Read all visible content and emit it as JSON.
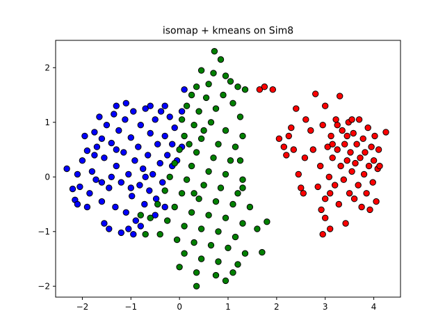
{
  "chart_data": {
    "type": "scatter",
    "title": "isomap + kmeans on Sim8",
    "xlabel": "",
    "ylabel": "",
    "xlim": [
      -2.55,
      4.55
    ],
    "ylim": [
      -2.2,
      2.5
    ],
    "x_ticks": [
      -2,
      -1,
      0,
      1,
      2,
      3,
      4
    ],
    "x_tick_labels": [
      "−2",
      "−1",
      "0",
      "1",
      "2",
      "3",
      "4"
    ],
    "y_ticks": [
      -2,
      -1,
      0,
      1,
      2
    ],
    "y_tick_labels": [
      "−2",
      "−1",
      "0",
      "1",
      "2"
    ],
    "grid": false,
    "legend": "none",
    "marker_edge_color": "#000000",
    "series": [
      {
        "color": "#0000ff",
        "points": [
          [
            -2.32,
            0.15
          ],
          [
            -2.2,
            -0.22
          ],
          [
            -2.15,
            -0.42
          ],
          [
            -2.05,
            -0.18
          ],
          [
            -2.1,
            0.05
          ],
          [
            -1.95,
            0.75
          ],
          [
            -1.9,
            0.48
          ],
          [
            -1.85,
            -0.3
          ],
          [
            -1.8,
            0.1
          ],
          [
            -1.75,
            0.82
          ],
          [
            -1.72,
            -0.05
          ],
          [
            -1.7,
            0.55
          ],
          [
            -1.65,
            1.1
          ],
          [
            -1.6,
            -0.45
          ],
          [
            -1.55,
            0.35
          ],
          [
            -1.5,
            0.95
          ],
          [
            -1.45,
            -0.2
          ],
          [
            -1.4,
            0.62
          ],
          [
            -1.35,
            1.15
          ],
          [
            -1.32,
            -0.55
          ],
          [
            -1.3,
            0.2
          ],
          [
            -1.25,
            0.85
          ],
          [
            -1.2,
            -0.1
          ],
          [
            -1.15,
            0.45
          ],
          [
            -1.12,
            1.05
          ],
          [
            -1.1,
            -0.65
          ],
          [
            -1.05,
            0.05
          ],
          [
            -1.0,
            0.72
          ],
          [
            -0.98,
            -0.35
          ],
          [
            -0.95,
            1.2
          ],
          [
            -0.92,
            0.3
          ],
          [
            -0.9,
            -0.8
          ],
          [
            -0.85,
            0.55
          ],
          [
            -0.82,
            -0.15
          ],
          [
            -0.8,
            0.95
          ],
          [
            -0.75,
            0.15
          ],
          [
            -0.72,
            -0.5
          ],
          [
            -0.7,
            1.25
          ],
          [
            -0.65,
            0.4
          ],
          [
            -0.62,
            -0.25
          ],
          [
            -0.6,
            0.8
          ],
          [
            -0.55,
            0.05
          ],
          [
            -0.5,
            1.05
          ],
          [
            -0.48,
            -0.4
          ],
          [
            -0.45,
            0.6
          ],
          [
            -0.4,
            0.25
          ],
          [
            -0.38,
            1.2
          ],
          [
            -0.35,
            -0.1
          ],
          [
            -0.3,
            0.75
          ],
          [
            -0.25,
            0.4
          ],
          [
            -0.2,
            1.1
          ],
          [
            -0.15,
            0.6
          ],
          [
            -0.1,
            0.9
          ],
          [
            -0.05,
            0.3
          ],
          [
            0.05,
            1.2
          ],
          [
            0.1,
            1.6
          ],
          [
            -1.55,
            -0.85
          ],
          [
            -1.45,
            -0.95
          ],
          [
            -1.2,
            -1.02
          ],
          [
            -1.05,
            -0.95
          ],
          [
            -0.95,
            -1.05
          ],
          [
            -0.8,
            -0.9
          ],
          [
            -1.6,
            0.7
          ],
          [
            -1.75,
            0.4
          ],
          [
            -2.0,
            0.3
          ],
          [
            -2.1,
            -0.5
          ],
          [
            -1.9,
            -0.55
          ],
          [
            -1.3,
            1.3
          ],
          [
            -1.1,
            1.35
          ],
          [
            -0.6,
            1.3
          ],
          [
            -0.3,
            1.3
          ],
          [
            0.05,
            0.55
          ],
          [
            -0.15,
            0.2
          ],
          [
            -0.5,
            -0.7
          ],
          [
            -0.3,
            -0.55
          ],
          [
            -1.4,
            0.0
          ],
          [
            -1.6,
            -0.1
          ],
          [
            -1.0,
            -0.2
          ],
          [
            -0.7,
            0.0
          ],
          [
            -1.3,
            0.5
          ]
        ]
      },
      {
        "color": "#008000",
        "points": [
          [
            0.72,
            2.3
          ],
          [
            0.85,
            2.15
          ],
          [
            0.45,
            1.95
          ],
          [
            0.7,
            1.9
          ],
          [
            0.95,
            1.85
          ],
          [
            1.05,
            1.75
          ],
          [
            0.35,
            1.65
          ],
          [
            0.6,
            1.7
          ],
          [
            1.2,
            1.65
          ],
          [
            1.35,
            1.6
          ],
          [
            0.25,
            1.5
          ],
          [
            0.55,
            1.45
          ],
          [
            0.9,
            1.5
          ],
          [
            1.1,
            1.35
          ],
          [
            0.15,
            1.3
          ],
          [
            0.4,
            1.2
          ],
          [
            0.75,
            1.25
          ],
          [
            1.25,
            1.1
          ],
          [
            0.05,
            1.05
          ],
          [
            0.3,
            0.95
          ],
          [
            0.65,
            1.0
          ],
          [
            0.95,
            0.85
          ],
          [
            1.3,
            0.75
          ],
          [
            0.1,
            0.75
          ],
          [
            0.45,
            0.7
          ],
          [
            0.8,
            0.6
          ],
          [
            1.15,
            0.55
          ],
          [
            0.0,
            0.5
          ],
          [
            0.35,
            0.45
          ],
          [
            0.7,
            0.35
          ],
          [
            1.05,
            0.3
          ],
          [
            -0.1,
            0.25
          ],
          [
            0.25,
            0.2
          ],
          [
            0.6,
            0.1
          ],
          [
            0.95,
            0.05
          ],
          [
            1.3,
            -0.05
          ],
          [
            -0.2,
            0.0
          ],
          [
            0.15,
            -0.05
          ],
          [
            0.5,
            -0.15
          ],
          [
            0.85,
            -0.2
          ],
          [
            1.2,
            -0.3
          ],
          [
            -0.3,
            -0.25
          ],
          [
            0.05,
            -0.3
          ],
          [
            0.4,
            -0.4
          ],
          [
            0.75,
            -0.45
          ],
          [
            1.1,
            -0.5
          ],
          [
            -0.45,
            -0.5
          ],
          [
            -0.1,
            -0.55
          ],
          [
            0.25,
            -0.65
          ],
          [
            0.6,
            -0.7
          ],
          [
            0.95,
            -0.75
          ],
          [
            1.3,
            -0.85
          ],
          [
            -0.6,
            -0.75
          ],
          [
            -0.25,
            -0.8
          ],
          [
            0.1,
            -0.9
          ],
          [
            0.45,
            -0.95
          ],
          [
            0.8,
            -1.0
          ],
          [
            1.15,
            -1.1
          ],
          [
            -0.4,
            -1.05
          ],
          [
            -0.05,
            -1.15
          ],
          [
            0.3,
            -1.2
          ],
          [
            0.65,
            -1.25
          ],
          [
            1.0,
            -1.3
          ],
          [
            1.35,
            -1.4
          ],
          [
            0.1,
            -1.4
          ],
          [
            0.45,
            -1.5
          ],
          [
            0.8,
            -1.55
          ],
          [
            1.2,
            -1.6
          ],
          [
            0.0,
            -1.65
          ],
          [
            0.35,
            -1.75
          ],
          [
            0.75,
            -1.8
          ],
          [
            1.1,
            -1.75
          ],
          [
            0.35,
            -2.0
          ],
          [
            0.95,
            -1.9
          ],
          [
            1.7,
            -1.38
          ],
          [
            1.8,
            -0.82
          ],
          [
            1.6,
            -0.95
          ],
          [
            1.45,
            -0.55
          ],
          [
            1.3,
            -0.2
          ],
          [
            1.25,
            0.3
          ],
          [
            -0.7,
            -1.05
          ],
          [
            -0.8,
            -0.7
          ],
          [
            0.2,
            0.6
          ],
          [
            0.5,
            0.85
          ],
          [
            0.3,
            -0.3
          ]
        ]
      },
      {
        "color": "#ff0000",
        "points": [
          [
            1.65,
            1.6
          ],
          [
            1.75,
            1.65
          ],
          [
            1.92,
            1.6
          ],
          [
            2.05,
            0.7
          ],
          [
            2.15,
            0.55
          ],
          [
            2.25,
            0.75
          ],
          [
            2.3,
            0.9
          ],
          [
            2.2,
            0.4
          ],
          [
            2.35,
            0.5
          ],
          [
            2.4,
            1.25
          ],
          [
            2.45,
            0.05
          ],
          [
            2.5,
            -0.2
          ],
          [
            2.55,
            -0.3
          ],
          [
            2.58,
            0.35
          ],
          [
            2.6,
            1.05
          ],
          [
            2.7,
            0.85
          ],
          [
            2.75,
            0.5
          ],
          [
            2.8,
            1.52
          ],
          [
            2.85,
            -0.18
          ],
          [
            2.9,
            0.2
          ],
          [
            2.92,
            -0.6
          ],
          [
            2.95,
            0.95
          ],
          [
            3.0,
            1.3
          ],
          [
            3.0,
            -0.4
          ],
          [
            3.05,
            0.55
          ],
          [
            3.08,
            0.0
          ],
          [
            3.1,
            -0.3
          ],
          [
            3.12,
            0.75
          ],
          [
            3.15,
            0.35
          ],
          [
            3.2,
            -0.15
          ],
          [
            3.22,
            1.05
          ],
          [
            3.25,
            0.5
          ],
          [
            3.28,
            -0.5
          ],
          [
            3.3,
            1.48
          ],
          [
            3.32,
            0.2
          ],
          [
            3.35,
            0.85
          ],
          [
            3.38,
            -0.05
          ],
          [
            3.4,
            0.6
          ],
          [
            3.42,
            -0.85
          ],
          [
            3.45,
            0.3
          ],
          [
            3.48,
            1.0
          ],
          [
            3.5,
            -0.3
          ],
          [
            3.52,
            0.45
          ],
          [
            3.55,
            0.1
          ],
          [
            3.58,
            0.8
          ],
          [
            3.6,
            -0.4
          ],
          [
            3.62,
            0.25
          ],
          [
            3.65,
            0.6
          ],
          [
            3.68,
            -0.15
          ],
          [
            3.7,
            1.05
          ],
          [
            3.72,
            0.35
          ],
          [
            3.75,
            -0.55
          ],
          [
            3.78,
            0.7
          ],
          [
            3.8,
            0.05
          ],
          [
            3.82,
            0.45
          ],
          [
            3.85,
            -0.3
          ],
          [
            3.88,
            0.9
          ],
          [
            3.9,
            0.2
          ],
          [
            3.92,
            -0.6
          ],
          [
            3.95,
            0.55
          ],
          [
            3.98,
            -0.1
          ],
          [
            4.0,
            0.3
          ],
          [
            4.02,
            0.75
          ],
          [
            4.05,
            -0.45
          ],
          [
            4.08,
            0.15
          ],
          [
            4.1,
            0.5
          ],
          [
            4.12,
            0.2
          ],
          [
            4.25,
            0.82
          ],
          [
            2.95,
            -1.05
          ],
          [
            3.1,
            -0.95
          ],
          [
            3.0,
            -0.75
          ],
          [
            3.55,
            1.05
          ],
          [
            3.25,
            0.95
          ],
          [
            3.45,
            0.75
          ],
          [
            3.15,
            0.6
          ]
        ]
      }
    ]
  }
}
